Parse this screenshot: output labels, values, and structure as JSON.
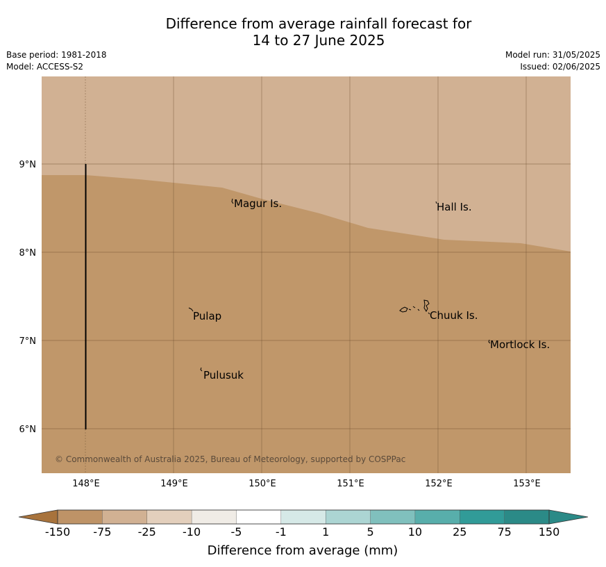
{
  "title": {
    "line1": "Difference from average rainfall forecast for",
    "line2": "14 to 27 June 2025"
  },
  "meta": {
    "base_period": "Base period: 1981-2018",
    "model": "Model: ACCESS-S2",
    "model_run": "Model run: 31/05/2025",
    "issued": "Issued: 02/06/2025"
  },
  "map": {
    "lon_range": [
      147.5,
      153.5
    ],
    "lat_range": [
      5.5,
      10.0
    ],
    "lon_ticks": [
      "148°E",
      "149°E",
      "150°E",
      "151°E",
      "152°E",
      "153°E"
    ],
    "lat_ticks": [
      "9°N",
      "8°N",
      "7°N",
      "6°N"
    ],
    "colors": {
      "band_-25_-10": "#d1b193",
      "band_-75_-25": "#c0976a",
      "grid": "#6e4e30"
    },
    "places": [
      {
        "name": "Magur Is.",
        "lon": 149.7,
        "lat": 8.55
      },
      {
        "name": "Hall Is.",
        "lon": 152.0,
        "lat": 8.5
      },
      {
        "name": "Pulap",
        "lon": 149.2,
        "lat": 7.28
      },
      {
        "name": "Chuuk Is.",
        "lon": 151.9,
        "lat": 7.3
      },
      {
        "name": "Mortlock Is.",
        "lon": 152.6,
        "lat": 6.95
      },
      {
        "name": "Pulusuk",
        "lon": 149.3,
        "lat": 6.62
      }
    ],
    "copyright": "© Commonwealth of Australia 2025, Bureau of Meteorology, supported by COSPPac"
  },
  "colorbar": {
    "title": "Difference from average (mm)",
    "ticks": [
      "-150",
      "-75",
      "-25",
      "-10",
      "-5",
      "-1",
      "1",
      "5",
      "10",
      "25",
      "75",
      "150"
    ],
    "colors": [
      "#a8733c",
      "#be9367",
      "#d1b193",
      "#e3cfbc",
      "#f0ece6",
      "#ffffff",
      "#d6e9e7",
      "#acd5d3",
      "#80c0bd",
      "#58aeab",
      "#319b98",
      "#2b8a87"
    ]
  }
}
